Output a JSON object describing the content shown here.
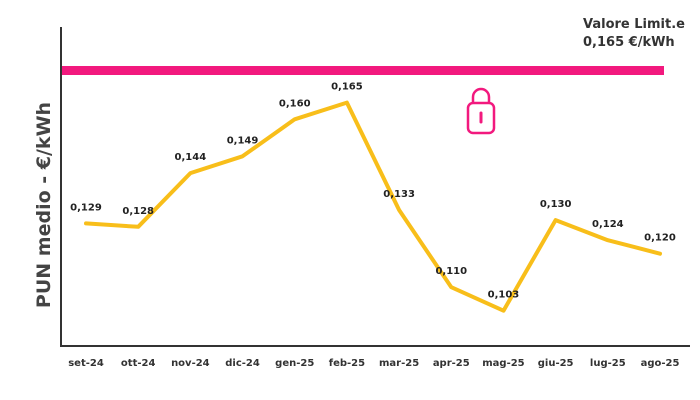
{
  "chart_data": {
    "type": "line",
    "ylabel": "PUN medio - €/kWh",
    "categories": [
      "set-24",
      "ott-24",
      "nov-24",
      "dic-24",
      "gen-25",
      "feb-25",
      "mar-25",
      "apr-25",
      "mag-25",
      "giu-25",
      "lug-25",
      "ago-25"
    ],
    "series": [
      {
        "values": [
          0.129,
          0.128,
          0.144,
          0.149,
          0.16,
          0.165,
          0.133,
          0.11,
          0.103,
          0.13,
          0.124,
          0.12
        ],
        "labels": [
          "0,129",
          "0,128",
          "0,144",
          "0,149",
          "0,160",
          "0,165",
          "0,133",
          "0,110",
          "0,103",
          "0,130",
          "0,124",
          "0,120"
        ],
        "color": "#F8BE1A"
      }
    ],
    "reference_line": {
      "value": 0.165,
      "color": "#F2197E",
      "label_line1": "Valore Limit.e",
      "label_line2": "0,165 €/kWh",
      "icon": "lock-icon"
    },
    "ylim": [
      0.0925,
      0.1875
    ],
    "grid": false,
    "axis_color": "#333333"
  }
}
